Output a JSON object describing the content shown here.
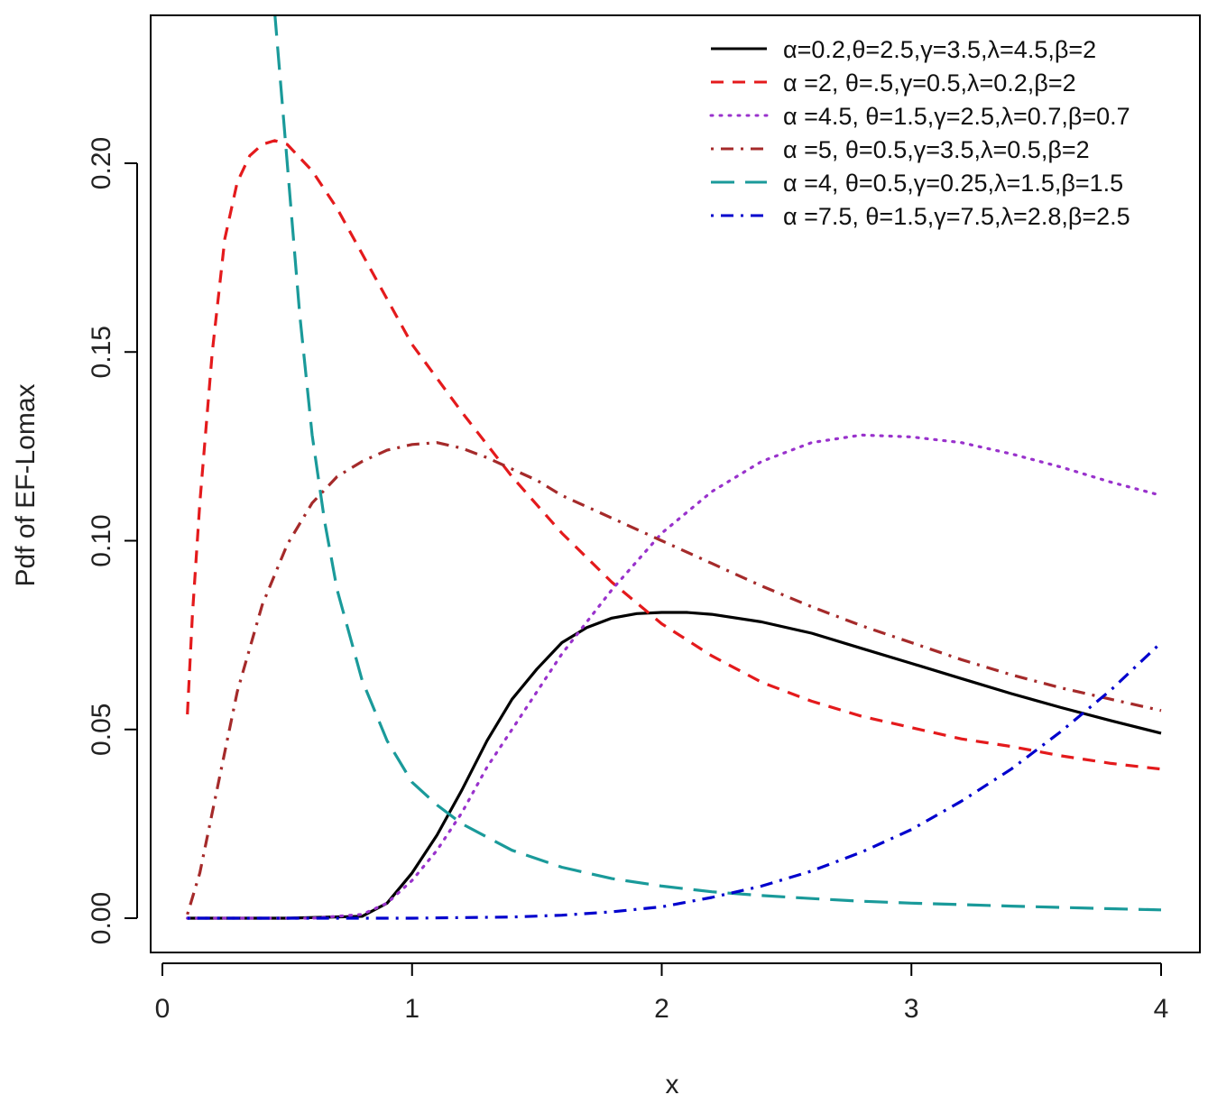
{
  "chart_data": {
    "type": "line",
    "title": "",
    "xlabel": "x",
    "ylabel": "Pdf of EF-Lomax",
    "xlim": [
      0,
      4
    ],
    "ylim": [
      0,
      0.24
    ],
    "x_ticks": [
      0,
      1,
      2,
      3,
      4
    ],
    "x_tick_labels": [
      "0",
      "1",
      "2",
      "3",
      "4"
    ],
    "y_ticks": [
      0,
      0.05,
      0.1,
      0.15,
      0.2
    ],
    "y_tick_labels": [
      "0.00",
      "0.05",
      "0.10",
      "0.15",
      "0.20"
    ],
    "grid": false,
    "legend_position": "top-right",
    "series": [
      {
        "name": "α=0.2,θ=2.5,γ=3.5,λ=4.5,β=2",
        "color": "#000000",
        "dash": "solid",
        "x": [
          0.1,
          0.5,
          0.8,
          0.9,
          1.0,
          1.1,
          1.2,
          1.3,
          1.4,
          1.5,
          1.6,
          1.7,
          1.8,
          1.9,
          2.0,
          2.1,
          2.2,
          2.4,
          2.6,
          2.8,
          3.0,
          3.2,
          3.4,
          3.6,
          3.8,
          4.0
        ],
        "y": [
          0.0,
          0.0,
          0.0005,
          0.004,
          0.012,
          0.022,
          0.034,
          0.047,
          0.058,
          0.066,
          0.073,
          0.077,
          0.0795,
          0.0807,
          0.081,
          0.081,
          0.0805,
          0.0785,
          0.0755,
          0.0715,
          0.0675,
          0.0635,
          0.0595,
          0.0558,
          0.0523,
          0.049
        ]
      },
      {
        "name": "α =2, θ=.5,γ=0.5,λ=0.2,β=2",
        "color": "#e41a1c",
        "dash": "dashed",
        "x": [
          0.1,
          0.12,
          0.15,
          0.2,
          0.25,
          0.3,
          0.35,
          0.4,
          0.45,
          0.5,
          0.6,
          0.7,
          0.8,
          0.9,
          1.0,
          1.2,
          1.4,
          1.6,
          1.8,
          2.0,
          2.2,
          2.4,
          2.6,
          2.8,
          3.0,
          3.2,
          3.4,
          3.6,
          3.8,
          4.0
        ],
        "y": [
          0.054,
          0.08,
          0.11,
          0.15,
          0.18,
          0.195,
          0.202,
          0.205,
          0.206,
          0.205,
          0.198,
          0.188,
          0.176,
          0.164,
          0.152,
          0.134,
          0.117,
          0.102,
          0.089,
          0.078,
          0.0695,
          0.0625,
          0.0575,
          0.0535,
          0.0505,
          0.0475,
          0.0455,
          0.043,
          0.041,
          0.0395
        ]
      },
      {
        "name": "α =4.5, θ=1.5,γ=2.5,λ=0.7,β=0.7",
        "color": "#9932cc",
        "dash": "dotted",
        "x": [
          0.1,
          0.6,
          0.8,
          0.9,
          1.0,
          1.1,
          1.2,
          1.3,
          1.4,
          1.6,
          1.8,
          2.0,
          2.2,
          2.4,
          2.6,
          2.8,
          3.0,
          3.2,
          3.4,
          3.6,
          3.8,
          4.0
        ],
        "y": [
          0.0,
          0.0,
          0.001,
          0.004,
          0.01,
          0.018,
          0.028,
          0.04,
          0.05,
          0.07,
          0.087,
          0.102,
          0.113,
          0.121,
          0.126,
          0.128,
          0.1275,
          0.126,
          0.123,
          0.1195,
          0.1155,
          0.112
        ]
      },
      {
        "name": "α =5, θ=0.5,γ=3.5,λ=0.5,β=2",
        "color": "#a52a2a",
        "dash": "dashdot",
        "x": [
          0.1,
          0.15,
          0.2,
          0.3,
          0.4,
          0.5,
          0.6,
          0.7,
          0.8,
          0.9,
          1.0,
          1.1,
          1.2,
          1.3,
          1.4,
          1.5,
          1.6,
          1.8,
          2.0,
          2.2,
          2.4,
          2.6,
          2.8,
          3.0,
          3.2,
          3.4,
          3.6,
          3.8,
          4.0
        ],
        "y": [
          0.001,
          0.012,
          0.028,
          0.06,
          0.083,
          0.099,
          0.11,
          0.117,
          0.121,
          0.124,
          0.1255,
          0.126,
          0.1245,
          0.122,
          0.119,
          0.116,
          0.112,
          0.106,
          0.1,
          0.094,
          0.088,
          0.0825,
          0.0775,
          0.073,
          0.0685,
          0.0645,
          0.061,
          0.058,
          0.055
        ]
      },
      {
        "name": "α =4, θ=0.5,γ=0.25,λ=1.5,β=1.5",
        "color": "#1a9a9a",
        "dash": "longdash",
        "x": [
          0.45,
          0.5,
          0.55,
          0.6,
          0.65,
          0.7,
          0.8,
          0.9,
          1.0,
          1.1,
          1.2,
          1.4,
          1.6,
          1.8,
          2.0,
          2.2,
          2.4,
          2.6,
          2.8,
          3.0,
          3.4,
          3.8,
          4.0
        ],
        "y": [
          0.24,
          0.2,
          0.16,
          0.128,
          0.105,
          0.087,
          0.063,
          0.047,
          0.036,
          0.03,
          0.025,
          0.018,
          0.0135,
          0.0105,
          0.0085,
          0.007,
          0.006,
          0.0052,
          0.0045,
          0.004,
          0.0032,
          0.0025,
          0.0022
        ]
      },
      {
        "name": "α =7.5, θ=1.5,γ=7.5,λ=2.8,β=2.5",
        "color": "#0000cd",
        "dash": "dashdot",
        "x": [
          0.1,
          1.0,
          1.4,
          1.6,
          1.8,
          2.0,
          2.2,
          2.4,
          2.6,
          2.8,
          3.0,
          3.2,
          3.4,
          3.6,
          3.8,
          4.0
        ],
        "y": [
          0.0,
          0.0,
          0.0003,
          0.0008,
          0.0017,
          0.003,
          0.0055,
          0.0085,
          0.0125,
          0.0175,
          0.0235,
          0.031,
          0.0395,
          0.0495,
          0.0605,
          0.073
        ]
      }
    ]
  }
}
